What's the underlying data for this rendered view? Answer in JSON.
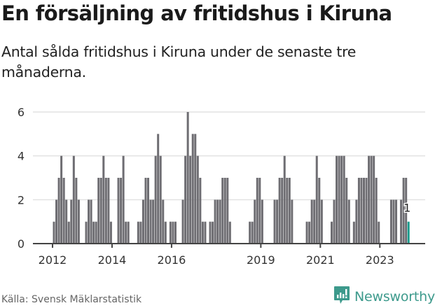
{
  "header": {
    "title": "En försäljning av fritidshus i Kiruna",
    "subtitle": "Antal sålda fritidshus i Kiruna under de senaste tre månaderna."
  },
  "footer": {
    "source": "Källa: Svensk Mäklarstatistik",
    "brand": "Newsworthy"
  },
  "colors": {
    "bar": "#6e6d72",
    "highlight": "#1a9b8c",
    "grid": "#e2e2e2",
    "axis": "#444444",
    "brand": "#3d9a8c"
  },
  "chart_data": {
    "type": "bar",
    "title": "En försäljning av fritidshus i Kiruna",
    "subtitle": "Antal sålda fritidshus i Kiruna under de senaste tre månaderna.",
    "xlabel": "",
    "ylabel": "",
    "ylim": [
      0,
      6
    ],
    "yticks": [
      0,
      2,
      4,
      6
    ],
    "xticks": [
      "2012",
      "2014",
      "2016",
      "2019",
      "2021",
      "2023"
    ],
    "grid": true,
    "legend": "none",
    "start": "2012-01",
    "frequency": "monthly",
    "annotation": {
      "label": "1",
      "target": "last"
    },
    "values": [
      1,
      2,
      3,
      4,
      3,
      2,
      1,
      2,
      4,
      3,
      2,
      0,
      0,
      1,
      2,
      2,
      1,
      1,
      3,
      3,
      4,
      3,
      3,
      1,
      0,
      0,
      3,
      3,
      4,
      1,
      1,
      0,
      0,
      0,
      1,
      1,
      2,
      3,
      3,
      2,
      2,
      4,
      5,
      4,
      2,
      1,
      0,
      1,
      1,
      1,
      0,
      0,
      2,
      4,
      6,
      4,
      5,
      5,
      4,
      3,
      1,
      1,
      0,
      1,
      1,
      2,
      2,
      2,
      3,
      3,
      3,
      1,
      0,
      0,
      0,
      0,
      0,
      0,
      0,
      1,
      1,
      2,
      3,
      3,
      2,
      0,
      0,
      0,
      0,
      2,
      2,
      3,
      3,
      4,
      3,
      3,
      2,
      0,
      0,
      0,
      0,
      0,
      1,
      1,
      2,
      2,
      4,
      3,
      2,
      0,
      0,
      0,
      1,
      2,
      4,
      4,
      4,
      4,
      3,
      2,
      0,
      1,
      2,
      3,
      3,
      3,
      3,
      4,
      4,
      4,
      3,
      1,
      0,
      0,
      0,
      0,
      2,
      2,
      2,
      0,
      2,
      3,
      3,
      1
    ]
  }
}
